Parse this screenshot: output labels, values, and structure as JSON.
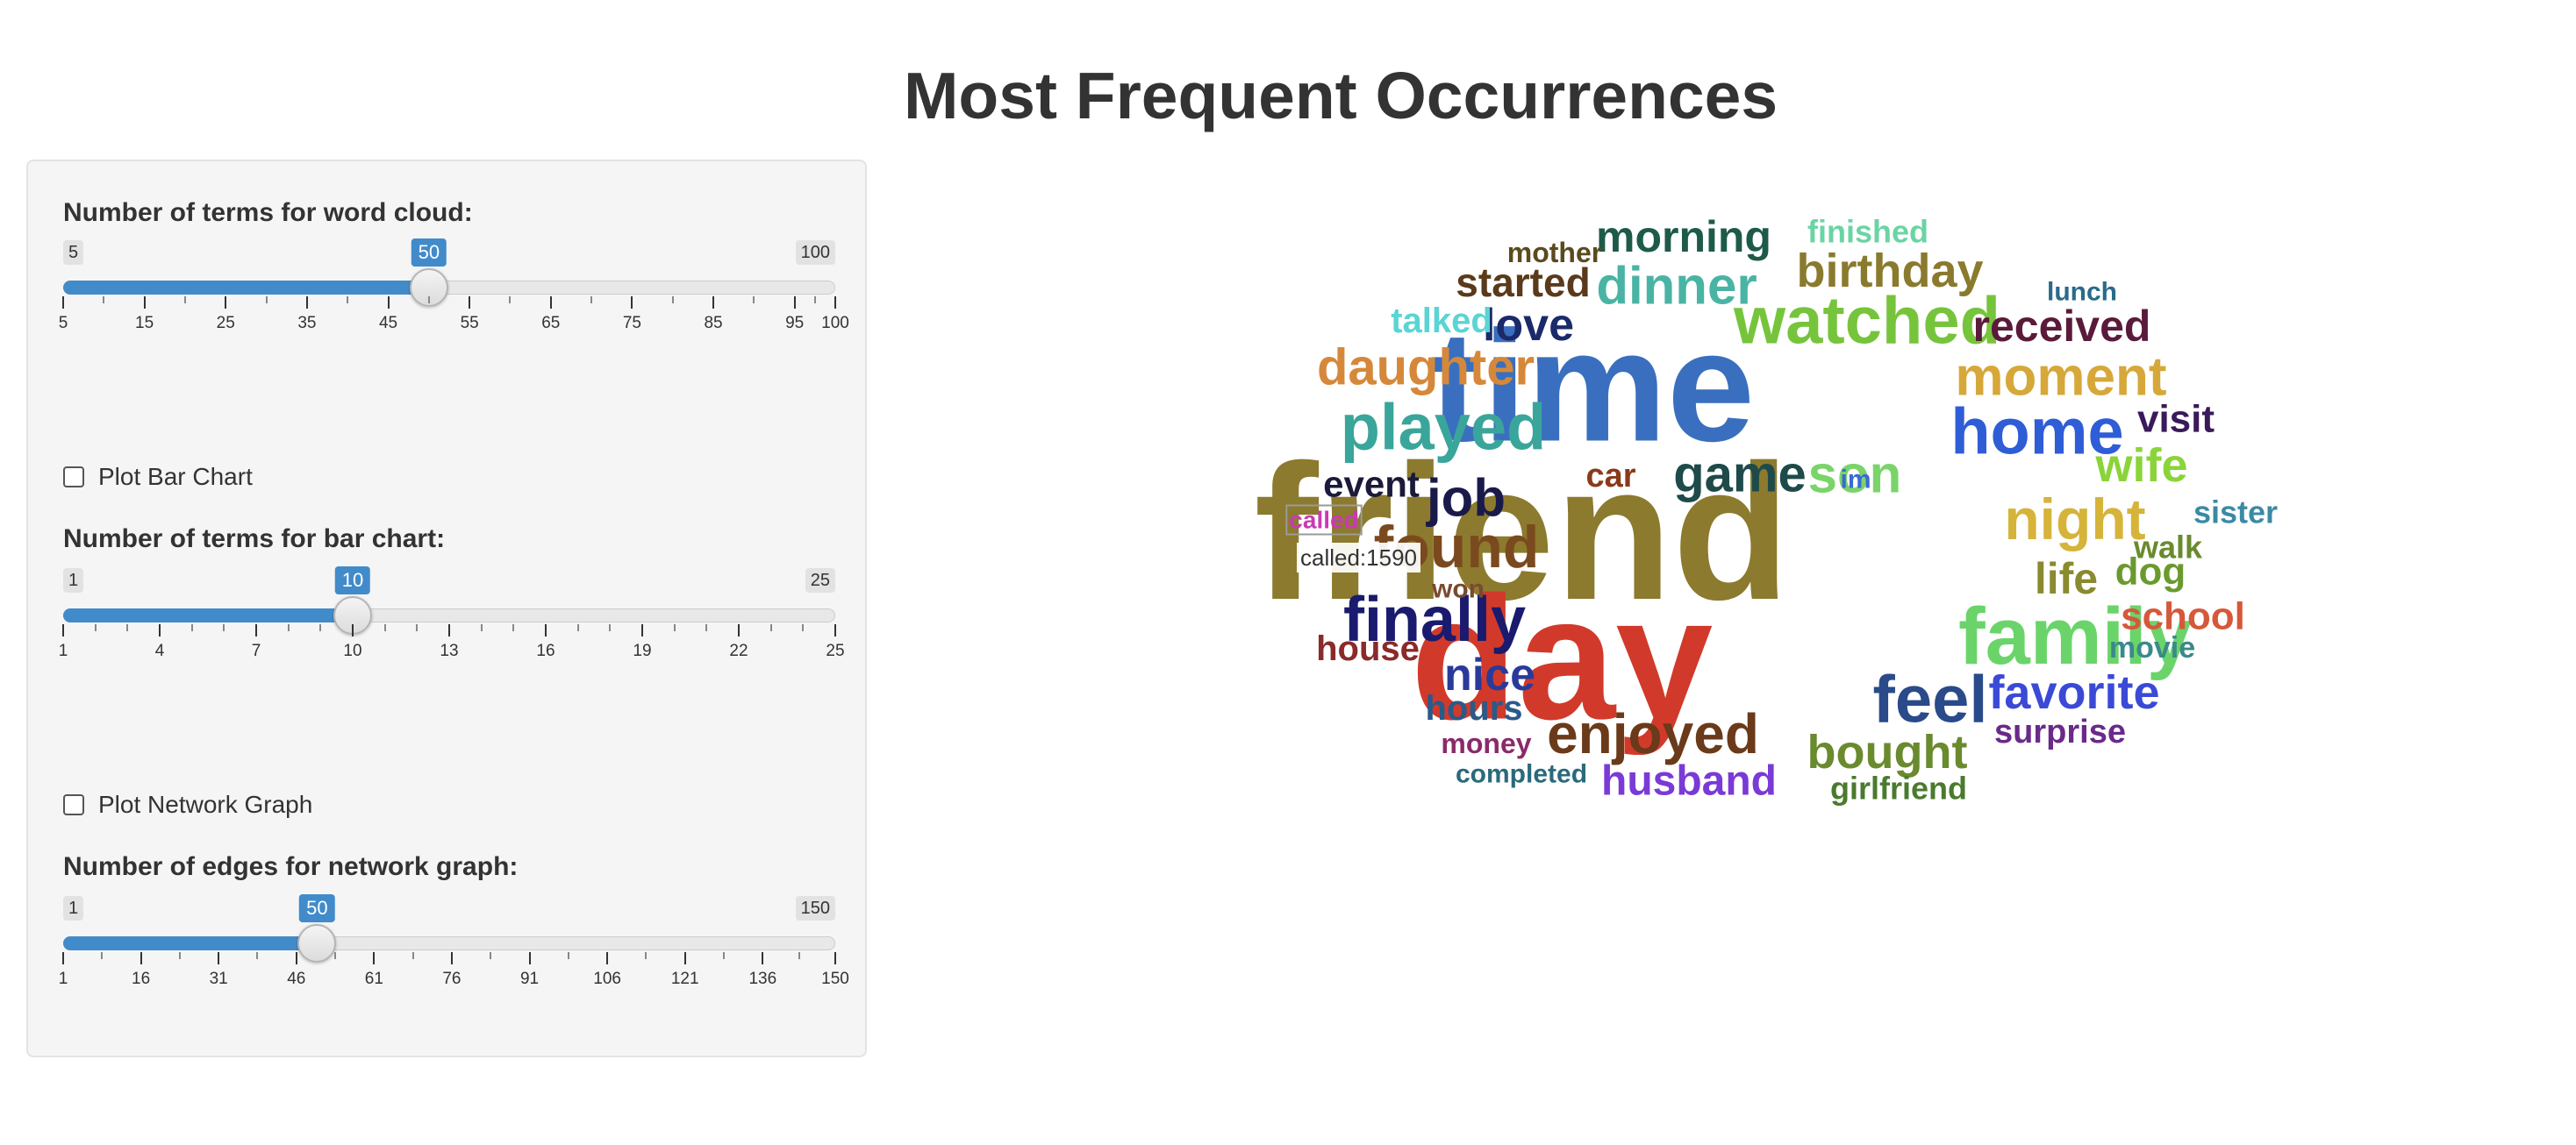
{
  "page": {
    "title": "Most Frequent Occurrences"
  },
  "controls": {
    "wordcloud_slider": {
      "label": "Number of terms for word cloud:",
      "min": 5,
      "max": 100,
      "value": 50,
      "step": 1,
      "ticks": [
        "5",
        "15",
        "25",
        "35",
        "45",
        "55",
        "65",
        "75",
        "85",
        "95",
        "100"
      ],
      "minor_per_major": 1
    },
    "bar_chart_checkbox": {
      "label": "Plot Bar Chart",
      "checked": false
    },
    "bar_slider": {
      "label": "Number of terms for bar chart:",
      "min": 1,
      "max": 25,
      "value": 10,
      "step": 1,
      "ticks": [
        "1",
        "4",
        "7",
        "10",
        "13",
        "16",
        "19",
        "22",
        "25"
      ],
      "minor_per_major": 2
    },
    "network_checkbox": {
      "label": "Plot Network Graph",
      "checked": false
    },
    "network_slider": {
      "label": "Number of edges for network graph:",
      "min": 1,
      "max": 150,
      "value": 50,
      "step": 1,
      "ticks": [
        "1",
        "16",
        "31",
        "46",
        "61",
        "76",
        "91",
        "106",
        "121",
        "136",
        "150"
      ],
      "minor_per_major": 1
    }
  },
  "colors": {
    "accent": "#428bca",
    "panel_bg": "#f5f5f5",
    "panel_border": "#e3e3e3"
  },
  "wordcloud": {
    "tooltip": "called:1590",
    "highlighted_word": "called",
    "words": [
      {
        "text": "friend",
        "color": "#8c7a2e"
      },
      {
        "text": "time",
        "color": "#3a6fbf"
      },
      {
        "text": "day",
        "color": "#d13a2a"
      },
      {
        "text": "family",
        "color": "#6ad46a"
      },
      {
        "text": "watched",
        "color": "#76c43c"
      },
      {
        "text": "home",
        "color": "#2e5dd6"
      },
      {
        "text": "played",
        "color": "#3aa59a"
      },
      {
        "text": "moment",
        "color": "#d6a83a"
      },
      {
        "text": "found",
        "color": "#7a4a1e"
      },
      {
        "text": "finally",
        "color": "#1a1a6e"
      },
      {
        "text": "night",
        "color": "#d6b43a"
      },
      {
        "text": "feel",
        "color": "#2a4a8a"
      },
      {
        "text": "enjoyed",
        "color": "#6a3a1a"
      },
      {
        "text": "game",
        "color": "#1e4a4a"
      },
      {
        "text": "son",
        "color": "#7ad46a"
      },
      {
        "text": "dinner",
        "color": "#4ab4a4"
      },
      {
        "text": "birthday",
        "color": "#8a7a2e"
      },
      {
        "text": "daughter",
        "color": "#d6883a"
      },
      {
        "text": "favorite",
        "color": "#3a4ad6"
      },
      {
        "text": "bought",
        "color": "#6a8a2e"
      },
      {
        "text": "husband",
        "color": "#7a3ad6"
      },
      {
        "text": "received",
        "color": "#5a1a3a"
      },
      {
        "text": "morning",
        "color": "#1e5a4a"
      },
      {
        "text": "job",
        "color": "#1a1a4a"
      },
      {
        "text": "nice",
        "color": "#2a3a9a"
      },
      {
        "text": "love",
        "color": "#1a2a6a"
      },
      {
        "text": "started",
        "color": "#5a3a1a"
      },
      {
        "text": "wife",
        "color": "#8ad43a"
      },
      {
        "text": "school",
        "color": "#d6583a"
      },
      {
        "text": "life",
        "color": "#8a8a2e"
      },
      {
        "text": "event",
        "color": "#1a1a3a"
      },
      {
        "text": "visit",
        "color": "#3a1a5a"
      },
      {
        "text": "dog",
        "color": "#6a9a2e"
      },
      {
        "text": "hours",
        "color": "#2a5a8a"
      },
      {
        "text": "house",
        "color": "#8a2a2a"
      },
      {
        "text": "sister",
        "color": "#3a8aa4"
      },
      {
        "text": "surprise",
        "color": "#6a2a8a"
      },
      {
        "text": "talked",
        "color": "#5ad4d4"
      },
      {
        "text": "finished",
        "color": "#6ad4a4"
      },
      {
        "text": "car",
        "color": "#8a3a1a"
      },
      {
        "text": "walk",
        "color": "#6a8a2e"
      },
      {
        "text": "movie",
        "color": "#3a8a8a"
      },
      {
        "text": "called",
        "color": "#c83ab4"
      },
      {
        "text": "mother",
        "color": "#5a4a1e"
      },
      {
        "text": "girlfriend",
        "color": "#4a7a2e"
      },
      {
        "text": "won",
        "color": "#7a4a2e"
      },
      {
        "text": "im",
        "color": "#3a6ad6"
      },
      {
        "text": "money",
        "color": "#8a2a6a"
      },
      {
        "text": "completed",
        "color": "#2a6a7a"
      },
      {
        "text": "lunch",
        "color": "#2a6a8a"
      }
    ]
  }
}
